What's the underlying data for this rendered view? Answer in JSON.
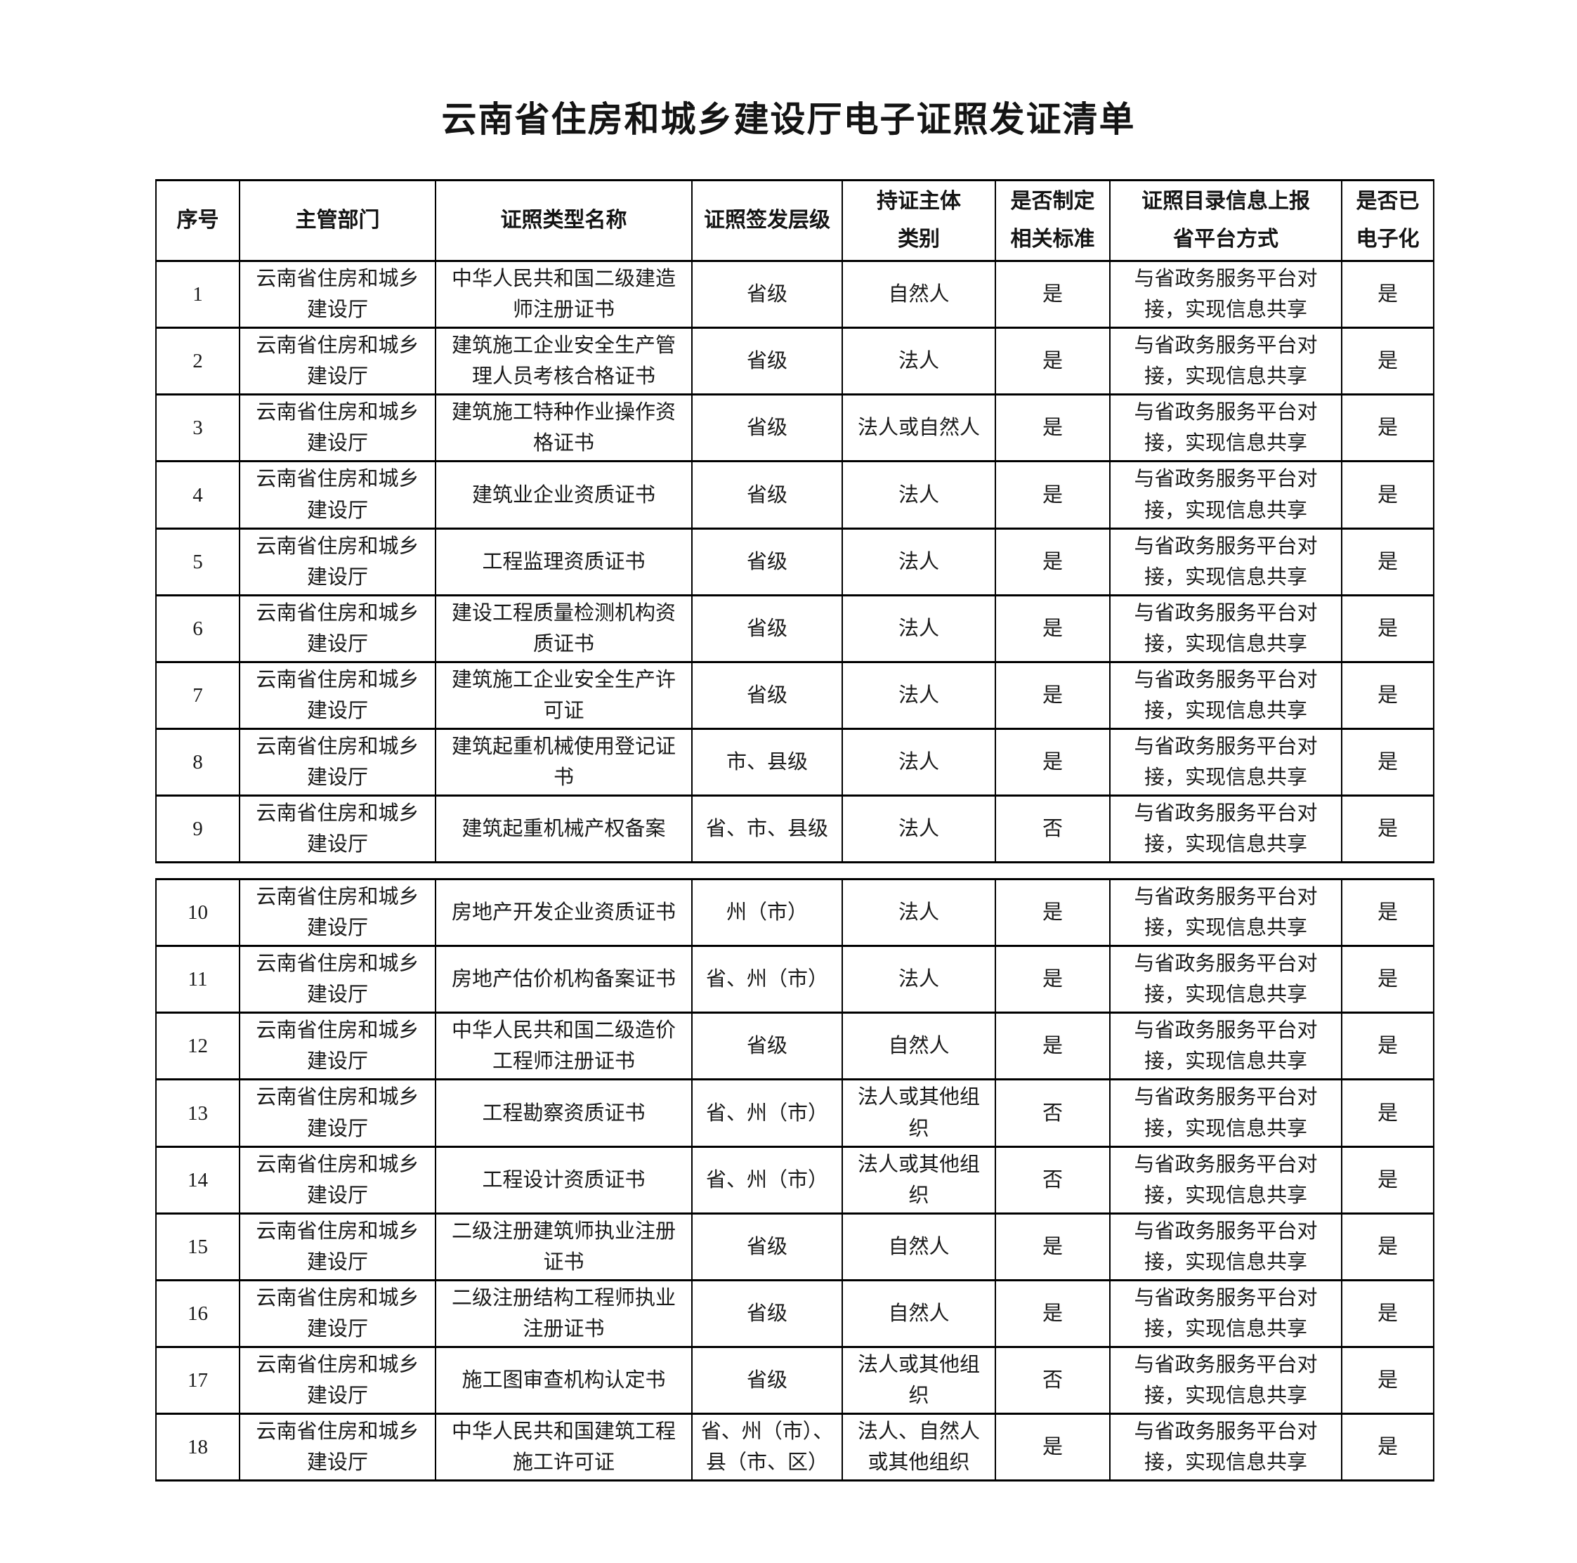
{
  "title": "云南省住房和城乡建设厅电子证照发证清单",
  "columns": [
    "序号",
    "主管部门",
    "证照类型名称",
    "证照签发层级",
    "持证主体\n类别",
    "是否制定\n相关标准",
    "证照目录信息上报\n省平台方式",
    "是否已\n电子化"
  ],
  "tables": [
    {
      "rows": [
        {
          "seq": "1",
          "department": "云南省住房和城乡\n建设厅",
          "cert_type": "中华人民共和国二级建造\n师注册证书",
          "issue_level": "省级",
          "holder_type": "自然人",
          "has_standard": "是",
          "report_method": "与省政务服务平台对\n接，实现信息共享",
          "digitized": "是"
        },
        {
          "seq": "2",
          "department": "云南省住房和城乡\n建设厅",
          "cert_type": "建筑施工企业安全生产管\n理人员考核合格证书",
          "issue_level": "省级",
          "holder_type": "法人",
          "has_standard": "是",
          "report_method": "与省政务服务平台对\n接，实现信息共享",
          "digitized": "是"
        },
        {
          "seq": "3",
          "department": "云南省住房和城乡\n建设厅",
          "cert_type": "建筑施工特种作业操作资\n格证书",
          "issue_level": "省级",
          "holder_type": "法人或自然人",
          "has_standard": "是",
          "report_method": "与省政务服务平台对\n接，实现信息共享",
          "digitized": "是"
        },
        {
          "seq": "4",
          "department": "云南省住房和城乡\n建设厅",
          "cert_type": "建筑业企业资质证书",
          "issue_level": "省级",
          "holder_type": "法人",
          "has_standard": "是",
          "report_method": "与省政务服务平台对\n接，实现信息共享",
          "digitized": "是"
        },
        {
          "seq": "5",
          "department": "云南省住房和城乡\n建设厅",
          "cert_type": "工程监理资质证书",
          "issue_level": "省级",
          "holder_type": "法人",
          "has_standard": "是",
          "report_method": "与省政务服务平台对\n接，实现信息共享",
          "digitized": "是"
        },
        {
          "seq": "6",
          "department": "云南省住房和城乡\n建设厅",
          "cert_type": "建设工程质量检测机构资\n质证书",
          "issue_level": "省级",
          "holder_type": "法人",
          "has_standard": "是",
          "report_method": "与省政务服务平台对\n接，实现信息共享",
          "digitized": "是"
        },
        {
          "seq": "7",
          "department": "云南省住房和城乡\n建设厅",
          "cert_type": "建筑施工企业安全生产许\n可证",
          "issue_level": "省级",
          "holder_type": "法人",
          "has_standard": "是",
          "report_method": "与省政务服务平台对\n接，实现信息共享",
          "digitized": "是"
        },
        {
          "seq": "8",
          "department": "云南省住房和城乡\n建设厅",
          "cert_type": "建筑起重机械使用登记证\n书",
          "issue_level": "市、县级",
          "holder_type": "法人",
          "has_standard": "是",
          "report_method": "与省政务服务平台对\n接，实现信息共享",
          "digitized": "是"
        },
        {
          "seq": "9",
          "department": "云南省住房和城乡\n建设厅",
          "cert_type": "建筑起重机械产权备案",
          "issue_level": "省、市、县级",
          "holder_type": "法人",
          "has_standard": "否",
          "report_method": "与省政务服务平台对\n接，实现信息共享",
          "digitized": "是"
        }
      ]
    },
    {
      "rows": [
        {
          "seq": "10",
          "department": "云南省住房和城乡\n建设厅",
          "cert_type": "房地产开发企业资质证书",
          "issue_level": "州（市）",
          "holder_type": "法人",
          "has_standard": "是",
          "report_method": "与省政务服务平台对\n接，实现信息共享",
          "digitized": "是"
        },
        {
          "seq": "11",
          "department": "云南省住房和城乡\n建设厅",
          "cert_type": "房地产估价机构备案证书",
          "issue_level": "省、州（市）",
          "holder_type": "法人",
          "has_standard": "是",
          "report_method": "与省政务服务平台对\n接，实现信息共享",
          "digitized": "是"
        },
        {
          "seq": "12",
          "department": "云南省住房和城乡\n建设厅",
          "cert_type": "中华人民共和国二级造价\n工程师注册证书",
          "issue_level": "省级",
          "holder_type": "自然人",
          "has_standard": "是",
          "report_method": "与省政务服务平台对\n接，实现信息共享",
          "digitized": "是"
        },
        {
          "seq": "13",
          "department": "云南省住房和城乡\n建设厅",
          "cert_type": "工程勘察资质证书",
          "issue_level": "省、州（市）",
          "holder_type": "法人或其他组\n织",
          "has_standard": "否",
          "report_method": "与省政务服务平台对\n接，实现信息共享",
          "digitized": "是"
        },
        {
          "seq": "14",
          "department": "云南省住房和城乡\n建设厅",
          "cert_type": "工程设计资质证书",
          "issue_level": "省、州（市）",
          "holder_type": "法人或其他组\n织",
          "has_standard": "否",
          "report_method": "与省政务服务平台对\n接，实现信息共享",
          "digitized": "是"
        },
        {
          "seq": "15",
          "department": "云南省住房和城乡\n建设厅",
          "cert_type": "二级注册建筑师执业注册\n证书",
          "issue_level": "省级",
          "holder_type": "自然人",
          "has_standard": "是",
          "report_method": "与省政务服务平台对\n接，实现信息共享",
          "digitized": "是"
        },
        {
          "seq": "16",
          "department": "云南省住房和城乡\n建设厅",
          "cert_type": "二级注册结构工程师执业\n注册证书",
          "issue_level": "省级",
          "holder_type": "自然人",
          "has_standard": "是",
          "report_method": "与省政务服务平台对\n接，实现信息共享",
          "digitized": "是"
        },
        {
          "seq": "17",
          "department": "云南省住房和城乡\n建设厅",
          "cert_type": "施工图审查机构认定书",
          "issue_level": "省级",
          "holder_type": "法人或其他组\n织",
          "has_standard": "否",
          "report_method": "与省政务服务平台对\n接，实现信息共享",
          "digitized": "是"
        },
        {
          "seq": "18",
          "department": "云南省住房和城乡\n建设厅",
          "cert_type": "中华人民共和国建筑工程\n施工许可证",
          "issue_level": "省、州（市）、\n县（市、区）",
          "holder_type": "法人、自然人\n或其他组织",
          "has_standard": "是",
          "report_method": "与省政务服务平台对\n接，实现信息共享",
          "digitized": "是"
        }
      ]
    }
  ]
}
